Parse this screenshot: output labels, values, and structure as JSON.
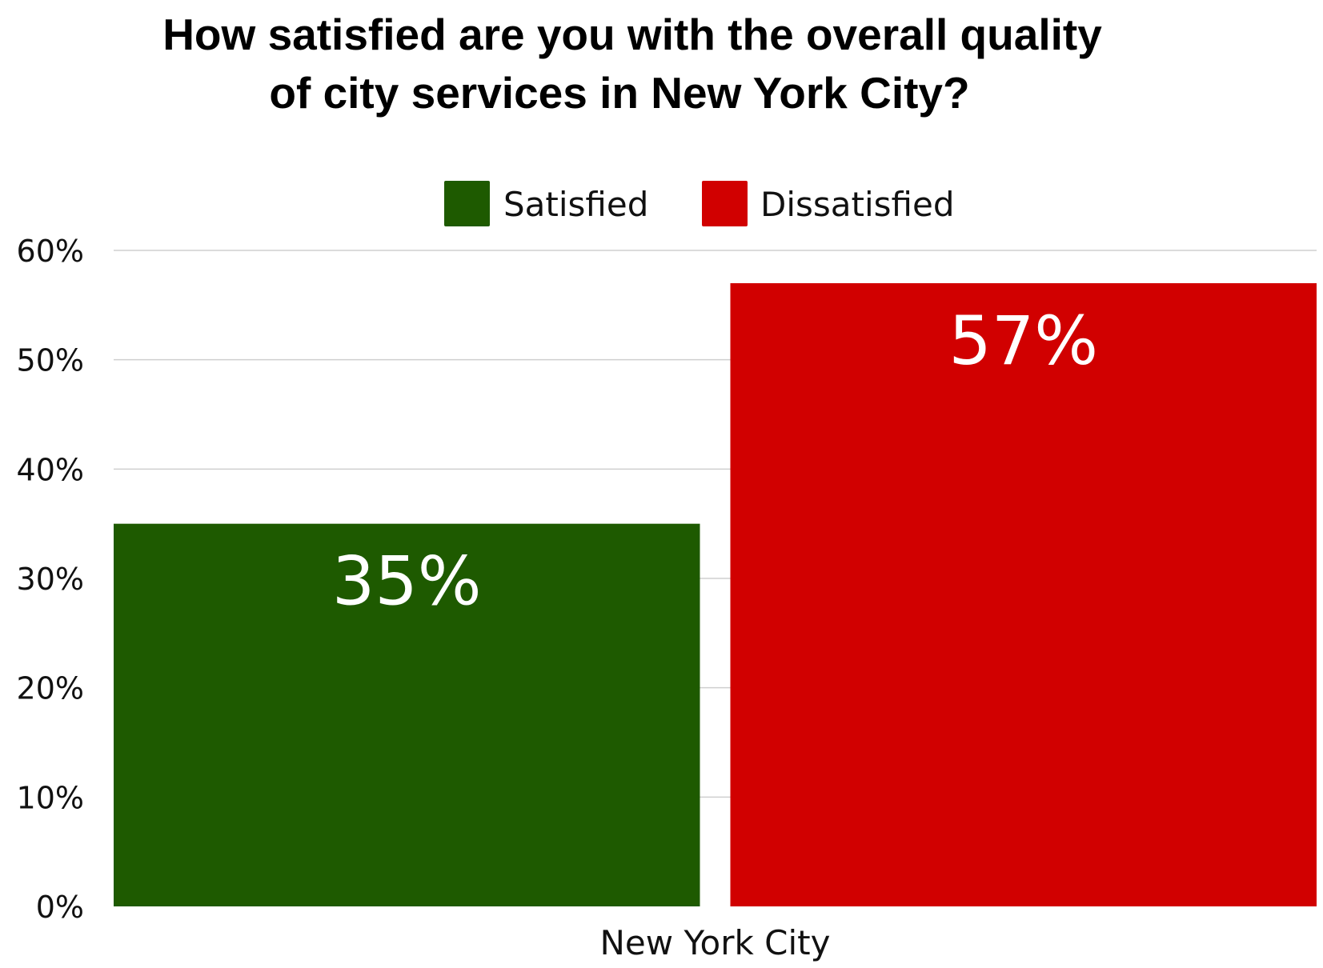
{
  "chart_data": {
    "type": "bar",
    "title": "How satisfied are you with the overall quality of city services in New York City?",
    "title_lines": [
      "How satisfied are you with the overall quality",
      "of city services in New York City?"
    ],
    "categories": [
      "New York City"
    ],
    "series": [
      {
        "name": "Satisfied",
        "values": [
          35
        ],
        "color": "#1e5a00",
        "value_label": "35%"
      },
      {
        "name": "Dissatisfied",
        "values": [
          57
        ],
        "color": "#d10000",
        "value_label": "57%"
      }
    ],
    "ylim": [
      0,
      60
    ],
    "yticks": [
      {
        "value": 0,
        "label": "0%"
      },
      {
        "value": 10,
        "label": "10%"
      },
      {
        "value": 20,
        "label": "20%"
      },
      {
        "value": 30,
        "label": "30%"
      },
      {
        "value": 40,
        "label": "40%"
      },
      {
        "value": 50,
        "label": "50%"
      },
      {
        "value": 60,
        "label": "60%"
      }
    ],
    "grid": true,
    "legend_position": "top-center",
    "xlabel": "",
    "ylabel": ""
  }
}
